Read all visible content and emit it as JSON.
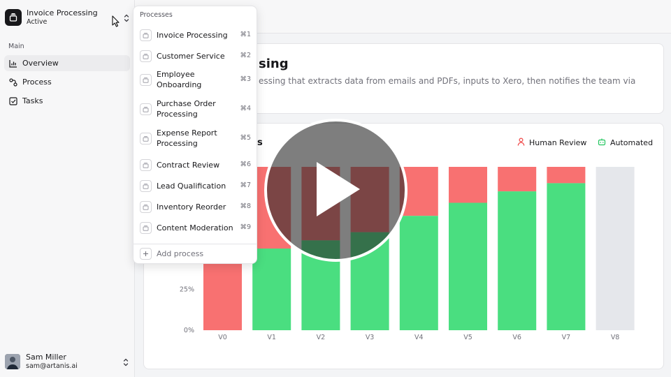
{
  "switcher": {
    "title": "Invoice Processing",
    "status": "Active"
  },
  "sidebar": {
    "section": "Main",
    "items": [
      {
        "label": "Overview",
        "icon": "bar-chart-icon"
      },
      {
        "label": "Process",
        "icon": "workflow-icon"
      },
      {
        "label": "Tasks",
        "icon": "checkbox-icon"
      }
    ]
  },
  "user": {
    "name": "Sam Miller",
    "email": "sam@artanis.ai"
  },
  "dropdown": {
    "label": "Processes",
    "items": [
      {
        "label": "Invoice Processing",
        "shortcut": "⌘1"
      },
      {
        "label": "Customer Service",
        "shortcut": "⌘2"
      },
      {
        "label": "Employee Onboarding",
        "shortcut": "⌘3"
      },
      {
        "label": "Purchase Order Processing",
        "shortcut": "⌘4"
      },
      {
        "label": "Expense Report Processing",
        "shortcut": "⌘5"
      },
      {
        "label": "Contract Review",
        "shortcut": "⌘6"
      },
      {
        "label": "Lead Qualification",
        "shortcut": "⌘7"
      },
      {
        "label": "Inventory Reorder",
        "shortcut": "⌘8"
      },
      {
        "label": "Content Moderation",
        "shortcut": "⌘9"
      }
    ],
    "add_label": "Add process"
  },
  "overview": {
    "title_visible": "sing",
    "description_visible": "essing that extracts data from emails and PDFs, inputs to Xero, then notifies the team via"
  },
  "chart_data": {
    "type": "bar",
    "title_visible": "s",
    "stacked": true,
    "categories": [
      "V0",
      "V1",
      "V2",
      "V3",
      "V4",
      "V5",
      "V6",
      "V7",
      "V8"
    ],
    "series": [
      {
        "name": "Automated",
        "color": "#4ade80",
        "values": [
          0,
          50,
          55,
          60,
          70,
          78,
          85,
          90,
          0
        ]
      },
      {
        "name": "Human Review",
        "color": "#f87171",
        "values": [
          100,
          50,
          45,
          40,
          30,
          22,
          15,
          10,
          0
        ]
      }
    ],
    "empty_color": "#e5e7eb",
    "empty_categories": [
      "V8"
    ],
    "ylim": [
      0,
      100
    ],
    "yticks_visible": [
      "0%",
      "25%"
    ],
    "legend": [
      "Human Review",
      "Automated"
    ],
    "legend_position": "top-right",
    "grid": false
  },
  "overlay": {
    "icon": "play-icon"
  }
}
